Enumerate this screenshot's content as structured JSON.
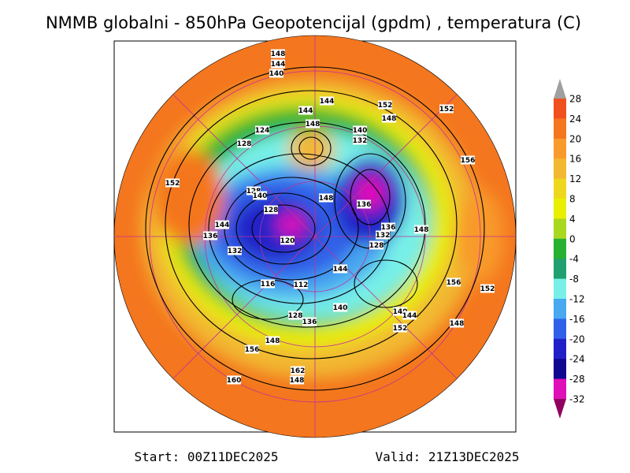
{
  "header": {
    "title": "NMMB globalni - 850hPa Geopotencijal (gpdm) , temperatura (C)"
  },
  "colorbar": {
    "ticks": [
      28,
      24,
      20,
      16,
      12,
      8,
      4,
      0,
      -4,
      -8,
      -12,
      -16,
      -20,
      -24,
      -28,
      -32
    ],
    "colors": [
      "#f0501e",
      "#f4761e",
      "#f89a2c",
      "#f2b830",
      "#eed81e",
      "#e8f000",
      "#a8d820",
      "#28b030",
      "#20a070",
      "#78f0e8",
      "#48a8f0",
      "#3060e8",
      "#2020c8",
      "#100890",
      "#e010b8"
    ]
  },
  "contour_labels": [
    148,
    144,
    140,
    144,
    152,
    152,
    144,
    148,
    148,
    140,
    124,
    132,
    128,
    156,
    152,
    128,
    140,
    148,
    136,
    128,
    144,
    136,
    148,
    136,
    132,
    120,
    128,
    132,
    144,
    116,
    112,
    156,
    152,
    140,
    140,
    144,
    128,
    136,
    152,
    148,
    148,
    156,
    162,
    148,
    160
  ],
  "footer": {
    "start": "Start: 00Z11DEC2025",
    "valid": "Valid: 21Z13DEC2025"
  }
}
